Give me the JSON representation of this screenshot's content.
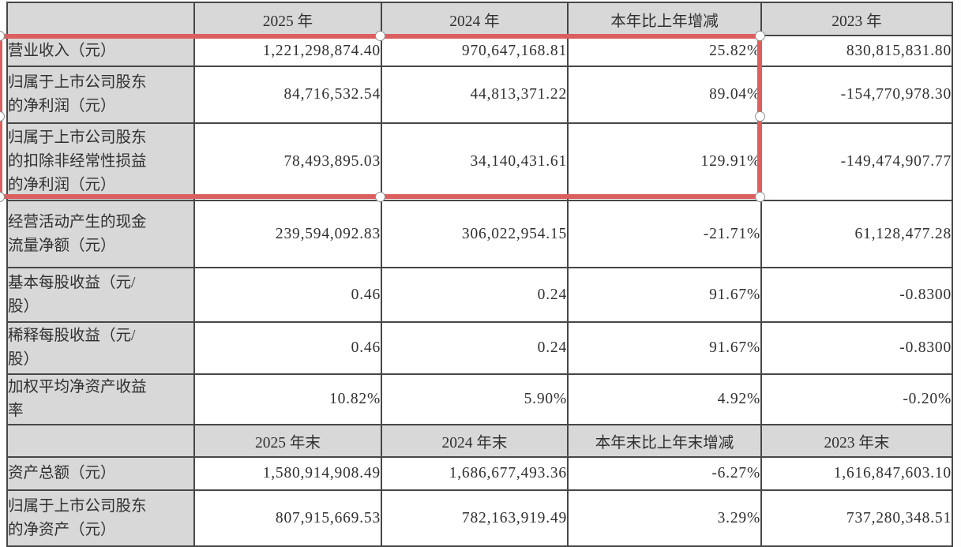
{
  "colors": {
    "highlight_red": "#dc5f5f",
    "cell_gray": "#d8d8d8",
    "border_dark": "#474747",
    "text": "#303030"
  },
  "table": {
    "sections": [
      {
        "header": {
          "corner": "",
          "cols": [
            "2025 年",
            "2024 年",
            "本年比上年增减",
            "2023 年"
          ]
        },
        "rows": [
          {
            "label": "营业收入（元）",
            "values": [
              "1,221,298,874.40",
              "970,647,168.81",
              "25.82%",
              "830,815,831.80"
            ]
          },
          {
            "label": "归属于上市公司股东\n的净利润（元）",
            "values": [
              "84,716,532.54",
              "44,813,371.22",
              "89.04%",
              "-154,770,978.30"
            ]
          },
          {
            "label": "归属于上市公司股东\n的扣除非经常性损益\n的净利润（元）",
            "values": [
              "78,493,895.03",
              "34,140,431.61",
              "129.91%",
              "-149,474,907.77"
            ]
          },
          {
            "label": "经营活动产生的现金\n流量净额（元）",
            "values": [
              "239,594,092.83",
              "306,022,954.15",
              "-21.71%",
              "61,128,477.28"
            ]
          },
          {
            "label": "基本每股收益（元/\n股）",
            "values": [
              "0.46",
              "0.24",
              "91.67%",
              "-0.8300"
            ]
          },
          {
            "label": "稀释每股收益（元/\n股）",
            "values": [
              "0.46",
              "0.24",
              "91.67%",
              "-0.8300"
            ]
          },
          {
            "label": "加权平均净资产收益\n率",
            "values": [
              "10.82%",
              "5.90%",
              "4.92%",
              "-0.20%"
            ]
          }
        ]
      },
      {
        "header": {
          "corner": "",
          "cols": [
            "2025 年末",
            "2024 年末",
            "本年末比上年末增减",
            "2023 年末"
          ]
        },
        "rows": [
          {
            "label": "资产总额（元）",
            "values": [
              "1,580,914,908.49",
              "1,686,677,493.36",
              "-6.27%",
              "1,616,847,603.10"
            ]
          },
          {
            "label": "归属于上市公司股东\n的净资产（元）",
            "values": [
              "807,915,669.53",
              "782,163,919.49",
              "3.29%",
              "737,280,348.51"
            ]
          }
        ]
      }
    ]
  },
  "annotation": {
    "type": "selection-rectangle",
    "color": "#dc5f5f",
    "highlighted_row_labels": [
      "营业收入（元）",
      "归属于上市公司股东的净利润（元）",
      "归属于上市公司股东的扣除非经常性损益的净利润（元）"
    ]
  }
}
